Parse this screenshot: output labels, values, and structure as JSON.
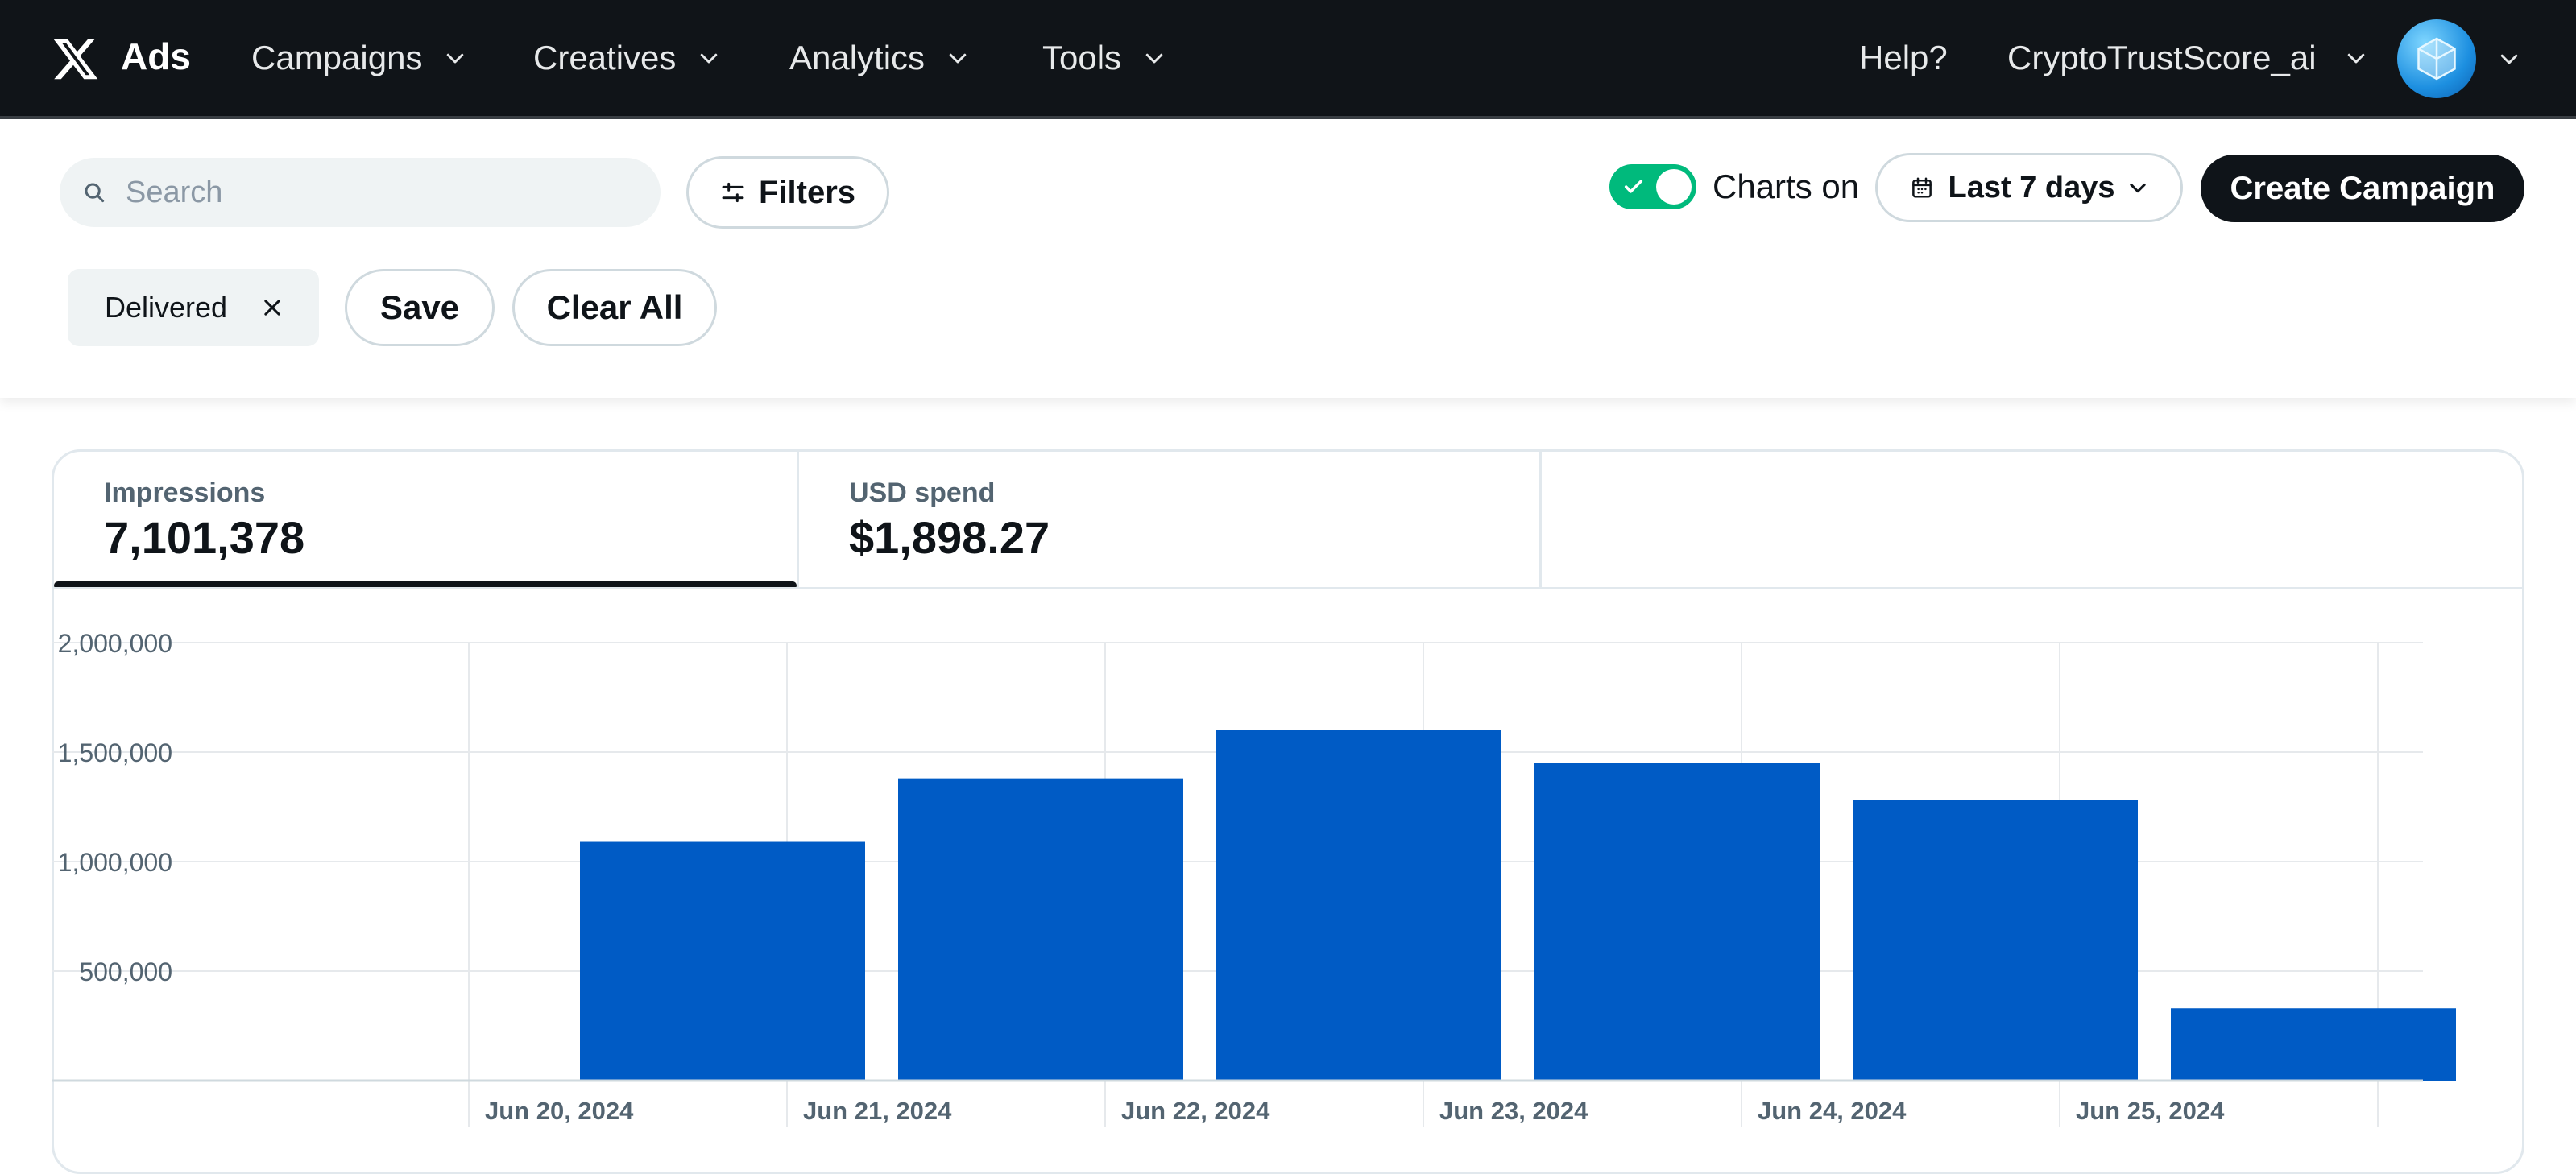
{
  "nav": {
    "brand": "Ads",
    "items": [
      {
        "label": "Campaigns"
      },
      {
        "label": "Creatives"
      },
      {
        "label": "Analytics"
      },
      {
        "label": "Tools"
      }
    ],
    "help": "Help?",
    "account": "CryptoTrustScore_ai"
  },
  "toolbar": {
    "search_placeholder": "Search",
    "filters_label": "Filters",
    "charts_toggle_label": "Charts on",
    "charts_toggle_on": true,
    "date_range_label": "Last 7 days",
    "create_label": "Create Campaign"
  },
  "filters": {
    "chip_label": "Delivered",
    "save_label": "Save",
    "clear_label": "Clear All"
  },
  "metrics": {
    "impressions": {
      "label": "Impressions",
      "value": "7,101,378"
    },
    "spend": {
      "label": "USD spend",
      "value": "$1,898.27"
    }
  },
  "colors": {
    "accent_bar": "#005bc5",
    "toggle_on": "#00ba7c",
    "nav_bg": "#101418"
  },
  "chart_data": {
    "type": "bar",
    "categories": [
      "Jun 20, 2024",
      "Jun 21, 2024",
      "Jun 22, 2024",
      "Jun 23, 2024",
      "Jun 24, 2024",
      "Jun 25, 2024"
    ],
    "values": [
      1090000,
      1380000,
      1600000,
      1450000,
      1280000,
      330000
    ],
    "ylim": [
      0,
      2000000
    ],
    "yticks": [
      {
        "value": 2000000,
        "label": "2,000,000"
      },
      {
        "value": 1500000,
        "label": "1,500,000"
      },
      {
        "value": 1000000,
        "label": "1,000,000"
      },
      {
        "value": 500000,
        "label": "500,000"
      }
    ],
    "grid": true
  }
}
